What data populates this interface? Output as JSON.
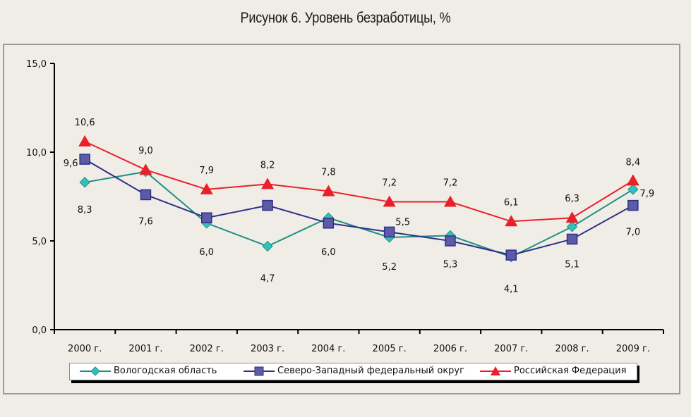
{
  "page": {
    "title": "Рисунок 6. Уровень безработицы, %"
  },
  "chart_data": {
    "type": "line",
    "title": "Рисунок 6. Уровень безработицы, %",
    "xlabel": "",
    "ylabel": "",
    "categories": [
      "2000 г.",
      "2001 г.",
      "2002 г.",
      "2003 г.",
      "2004 г.",
      "2005 г.",
      "2006 г.",
      "2007 г.",
      "2008 г.",
      "2009 г."
    ],
    "ylim": [
      0,
      15
    ],
    "yticks": [
      0,
      5,
      10,
      15
    ],
    "ytick_labels": [
      "0,0",
      "5,0",
      "10,0",
      "15,0"
    ],
    "grid": false,
    "legend_position": "bottom",
    "series": [
      {
        "name": "Вологодская область",
        "marker": "diamond",
        "color": "#1f8f86",
        "marker_fill": "#33c0bd",
        "values": [
          8.3,
          8.9,
          6.0,
          4.7,
          6.3,
          5.2,
          5.3,
          4.1,
          5.8,
          7.9
        ],
        "labels": [
          "8,3",
          null,
          "6,0",
          "4,7",
          null,
          "5,2",
          "5,3",
          "4,1",
          null,
          "7,9"
        ]
      },
      {
        "name": "Северо-Западный федеральный округ",
        "marker": "square",
        "color": "#2f2f8a",
        "marker_fill": "#5b5ba6",
        "values": [
          9.6,
          7.6,
          6.3,
          7.0,
          6.0,
          5.5,
          5.0,
          4.2,
          5.1,
          7.0
        ],
        "labels": [
          "9,6",
          "7,6",
          null,
          null,
          "6,0",
          "5,5",
          null,
          null,
          "5,1",
          "7,0"
        ]
      },
      {
        "name": "Российская Федерация",
        "marker": "triangle",
        "color": "#e8202a",
        "marker_fill": "#e8202a",
        "values": [
          10.6,
          9.0,
          7.9,
          8.2,
          7.8,
          7.2,
          7.2,
          6.1,
          6.3,
          8.4
        ],
        "labels": [
          "10,6",
          "9,0",
          "7,9",
          "8,2",
          "7,8",
          "7,2",
          "7,2",
          "6,1",
          "6,3",
          "8,4"
        ]
      }
    ]
  }
}
